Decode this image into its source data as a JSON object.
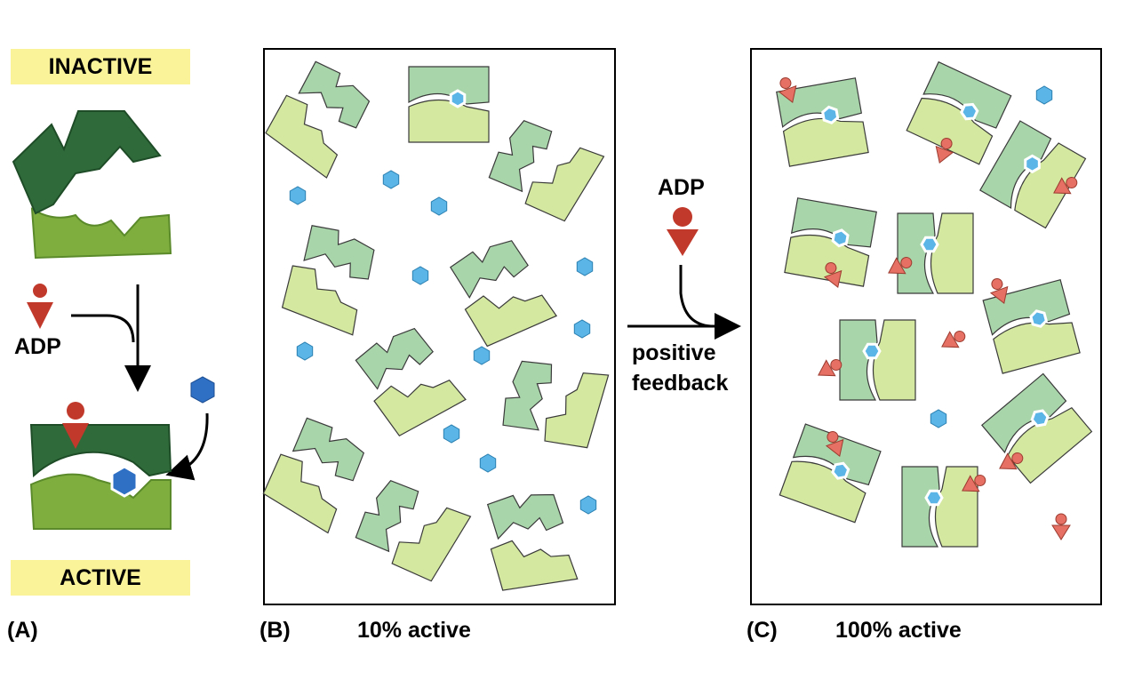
{
  "panel_a": {
    "letter": "(A)",
    "inactive_label": "INACTIVE",
    "active_label": "ACTIVE",
    "adp_label": "ADP"
  },
  "panel_b": {
    "letter": "(B)",
    "caption": "10% active"
  },
  "panel_c": {
    "letter": "(C)",
    "caption": "100% active"
  },
  "middle": {
    "adp_label": "ADP",
    "feedback_line1": "positive",
    "feedback_line2": "feedback"
  },
  "colors": {
    "dark_green": "#2f6b3a",
    "light_green": "#7fae3f",
    "pale_green": "#a9d5ab",
    "pale_yellow_green": "#d4e89f",
    "ligand_blue": "#5bb5e6",
    "adp_red": "#e05a48",
    "label_yellow": "#fbf39a"
  }
}
